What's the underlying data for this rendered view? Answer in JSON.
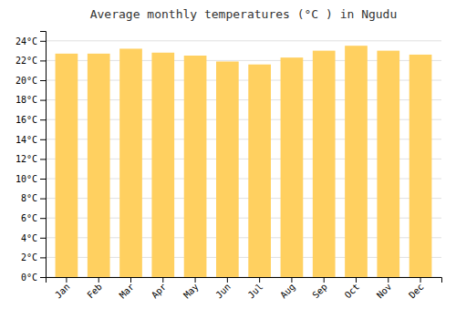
{
  "chart_data": {
    "type": "bar",
    "title": "Average monthly temperatures (°C ) in Ngudu",
    "categories": [
      "Jan",
      "Feb",
      "Mar",
      "Apr",
      "May",
      "Jun",
      "Jul",
      "Aug",
      "Sep",
      "Oct",
      "Nov",
      "Dec"
    ],
    "values": [
      22.7,
      22.7,
      23.2,
      22.8,
      22.5,
      21.9,
      21.6,
      22.3,
      23.0,
      23.5,
      23.0,
      22.6
    ],
    "color": "#FFD060",
    "ylim": [
      0,
      25
    ],
    "yticks": [
      {
        "value": 0,
        "label": "0°C"
      },
      {
        "value": 2,
        "label": "2°C"
      },
      {
        "value": 4,
        "label": "4°C"
      },
      {
        "value": 6,
        "label": "6°C"
      },
      {
        "value": 8,
        "label": "8°C"
      },
      {
        "value": 10,
        "label": "10°C"
      },
      {
        "value": 12,
        "label": "12°C"
      },
      {
        "value": 14,
        "label": "14°C"
      },
      {
        "value": 16,
        "label": "16°C"
      },
      {
        "value": 18,
        "label": "18°C"
      },
      {
        "value": 20,
        "label": "20°C"
      },
      {
        "value": 22,
        "label": "22°C"
      },
      {
        "value": 24,
        "label": "24°C"
      }
    ],
    "grid": true
  }
}
